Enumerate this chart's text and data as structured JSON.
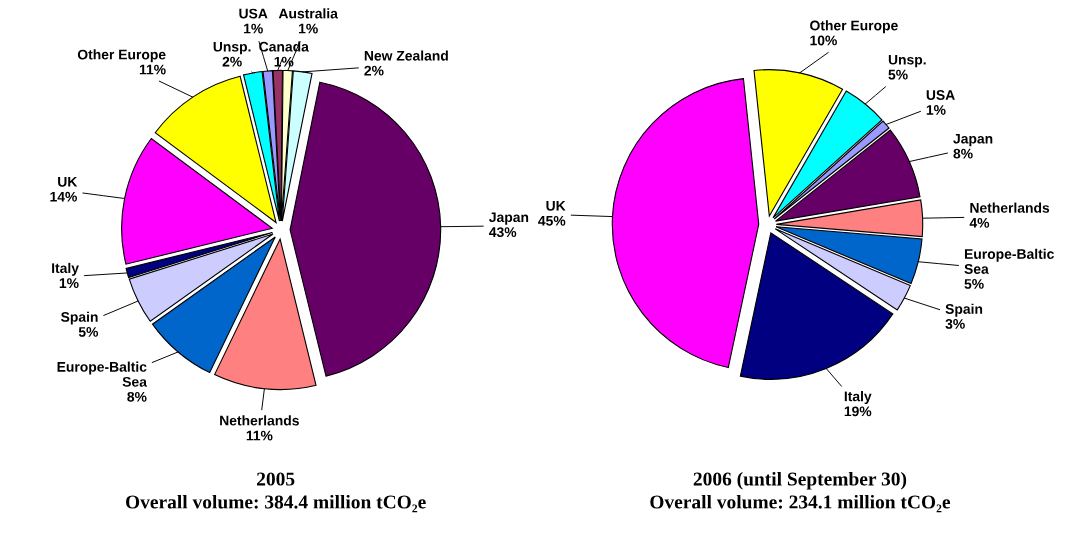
{
  "chart_data": [
    {
      "type": "pie",
      "title": "2005",
      "subtitle": "Overall volume: 384.4 million tCO₂e",
      "categories": [
        "Canada",
        "Australia",
        "New Zealand",
        "Japan",
        "Netherlands",
        "Europe-Baltic\nSea",
        "Spain",
        "Italy",
        "UK",
        "Other Europe",
        "Unsp.",
        "USA"
      ],
      "values": [
        1,
        1,
        2,
        43,
        11,
        8,
        5,
        1,
        14,
        11,
        2,
        1
      ],
      "value_labels": [
        "1%",
        "1%",
        "2%",
        "43%",
        "11%",
        "8%",
        "5%",
        "1%",
        "14%",
        "11%",
        "2%",
        "1%"
      ],
      "colors": [
        "#993366",
        "#ffffcc",
        "#ccffff",
        "#660066",
        "#ff8080",
        "#0066cc",
        "#ccccff",
        "#000080",
        "#ff00ff",
        "#ffff00",
        "#00ffff",
        "#9999ff"
      ],
      "legend": false
    },
    {
      "type": "pie",
      "title": "2006 (until September 30)",
      "subtitle": "Overall volume: 234.1 million tCO₂e",
      "categories": [
        "Other Europe",
        "Unsp.",
        "USA",
        "Japan",
        "Netherlands",
        "Europe-Baltic\nSea",
        "Spain",
        "Italy",
        "UK"
      ],
      "values": [
        10,
        5,
        1,
        8,
        4,
        5,
        3,
        19,
        45
      ],
      "value_labels": [
        "10%",
        "5%",
        "1%",
        "8%",
        "4%",
        "5%",
        "3%",
        "19%",
        "45%"
      ],
      "colors": [
        "#ffff00",
        "#00ffff",
        "#9999ff",
        "#660066",
        "#ff8080",
        "#0066cc",
        "#ccccff",
        "#000080",
        "#ff00ff"
      ],
      "legend": false
    }
  ]
}
